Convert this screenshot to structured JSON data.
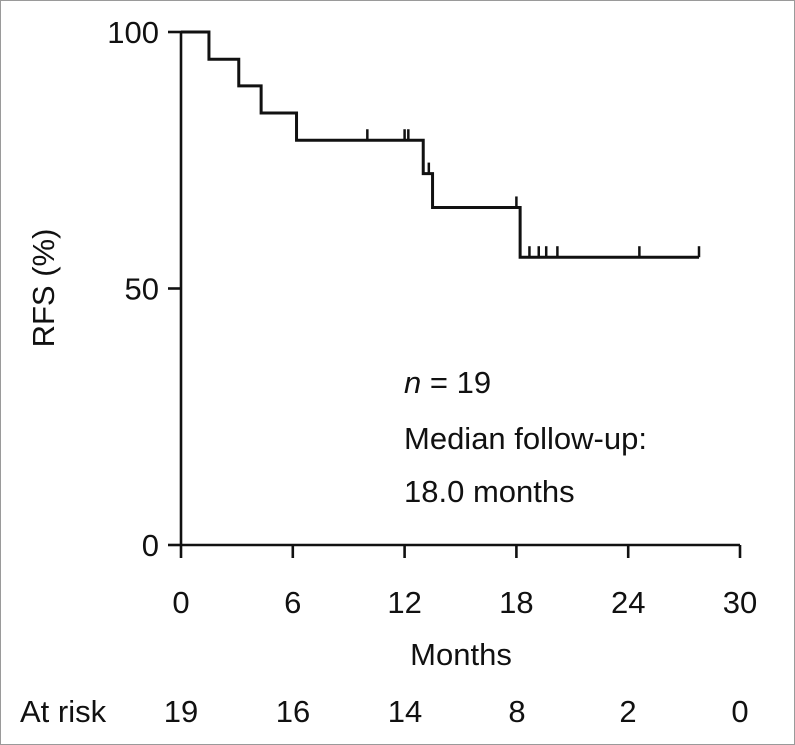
{
  "chart_data": {
    "type": "line",
    "subtype": "kaplan-meier",
    "title": "",
    "xlabel": "Months",
    "ylabel": "RFS (%)",
    "xlim": [
      0,
      30
    ],
    "ylim": [
      0,
      100
    ],
    "xticks": [
      0,
      6,
      12,
      18,
      24,
      30
    ],
    "xtick_labels": [
      "0",
      "6",
      "12",
      "18",
      "24",
      "30"
    ],
    "yticks": [
      0,
      50,
      100
    ],
    "ytick_labels": [
      "0",
      "50",
      "100"
    ],
    "grid": false,
    "series": [
      {
        "name": "RFS",
        "step_points": [
          {
            "x": 0,
            "y": 100
          },
          {
            "x": 1.5,
            "y": 94.7
          },
          {
            "x": 3.1,
            "y": 89.5
          },
          {
            "x": 4.3,
            "y": 84.2
          },
          {
            "x": 6.2,
            "y": 78.9
          },
          {
            "x": 13.0,
            "y": 72.4
          },
          {
            "x": 13.5,
            "y": 65.8
          },
          {
            "x": 18.2,
            "y": 56.1
          },
          {
            "x": 27.8,
            "y": 56.1
          }
        ],
        "censor_marks": [
          {
            "x": 10.0,
            "y": 78.9
          },
          {
            "x": 12.0,
            "y": 78.9
          },
          {
            "x": 12.2,
            "y": 78.9
          },
          {
            "x": 13.3,
            "y": 72.4
          },
          {
            "x": 18.0,
            "y": 65.8
          },
          {
            "x": 18.7,
            "y": 56.1
          },
          {
            "x": 19.2,
            "y": 56.1
          },
          {
            "x": 19.6,
            "y": 56.1
          },
          {
            "x": 20.2,
            "y": 56.1
          },
          {
            "x": 24.6,
            "y": 56.1
          },
          {
            "x": 27.8,
            "y": 56.1
          }
        ]
      }
    ],
    "annotations": [
      {
        "id": "n",
        "prefix": "n",
        "text": " = 19"
      },
      {
        "id": "median-label",
        "text": "Median follow-up:"
      },
      {
        "id": "median-value",
        "text": "18.0 months"
      }
    ],
    "at_risk": {
      "label": "At risk",
      "values": [
        "19",
        "16",
        "14",
        "8",
        "2",
        "0"
      ]
    }
  }
}
